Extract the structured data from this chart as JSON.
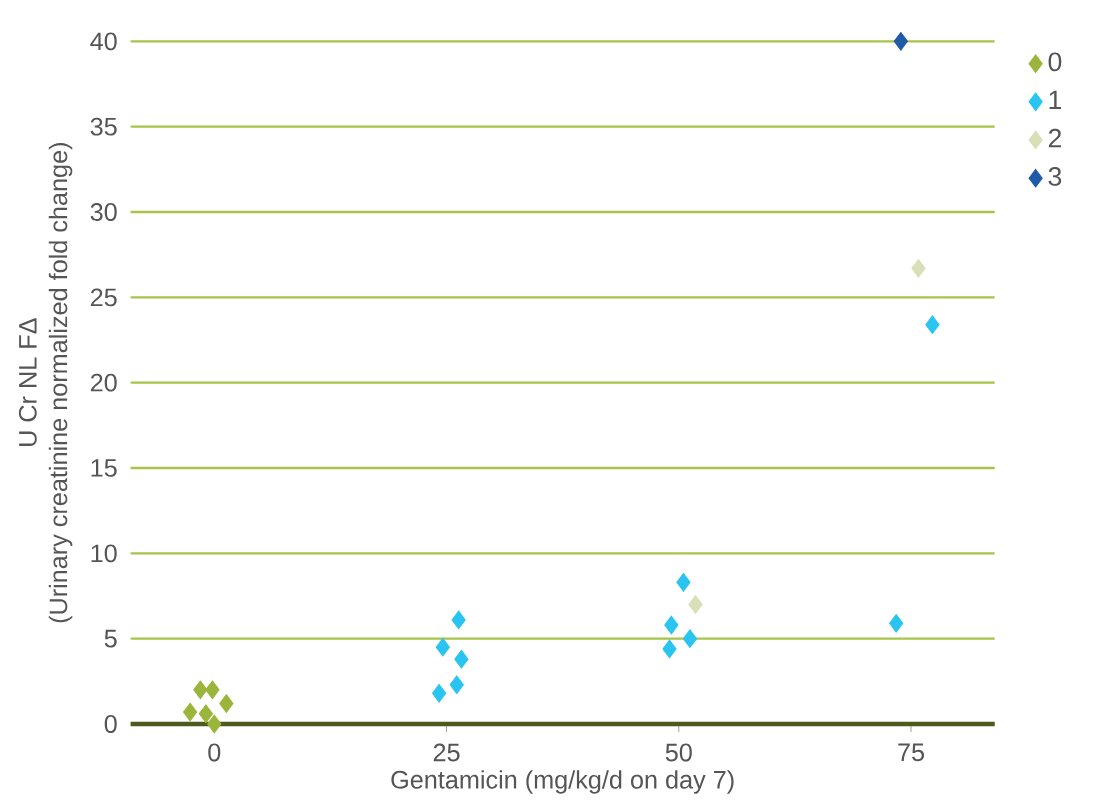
{
  "chart_data": {
    "type": "scatter",
    "xlabel": "Gentamicin (mg/kg/d on day 7)",
    "ylabel": "U Cr NL FΔ\n(Urinary creatinine normalized fold change)",
    "xlim": [
      -9,
      84
    ],
    "ylim": [
      0,
      40
    ],
    "xticks": [
      0,
      25,
      50,
      75
    ],
    "yticks": [
      0,
      5,
      10,
      15,
      20,
      25,
      30,
      35,
      40
    ],
    "grid": "y",
    "legend": "top right",
    "marker": "diamond",
    "series": [
      {
        "name": "0",
        "color": "#9bb53a",
        "x": [
          -2.6,
          -1.5,
          -0.2,
          -0.9,
          0,
          1.3
        ],
        "values": [
          0.7,
          2.0,
          2.0,
          0.6,
          0,
          1.2
        ]
      },
      {
        "name": "1",
        "color": "#29c4f0",
        "x": [
          24.2,
          24.6,
          26.3,
          26.6,
          26.1,
          50.5,
          49.2,
          49.0,
          51.2,
          73.4,
          77.3
        ],
        "values": [
          1.8,
          4.5,
          6.1,
          3.8,
          2.3,
          8.3,
          5.8,
          4.4,
          5.0,
          5.9,
          23.4
        ]
      },
      {
        "name": "2",
        "color": "#d9dfb8",
        "x": [
          51.8,
          75.8
        ],
        "values": [
          7.0,
          26.7
        ]
      },
      {
        "name": "3",
        "color": "#1f5aa6",
        "x": [
          73.9
        ],
        "values": [
          40.0
        ]
      }
    ]
  }
}
